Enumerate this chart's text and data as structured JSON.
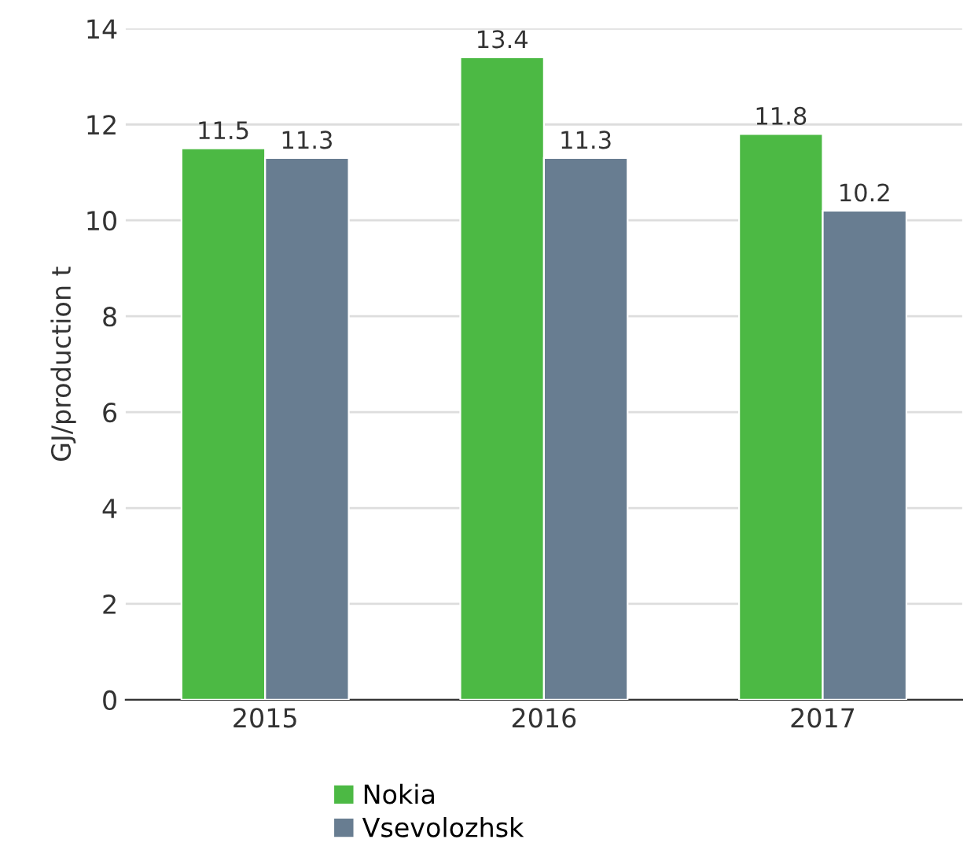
{
  "chart_data": {
    "type": "bar",
    "ylabel": "GJ/production t",
    "categories": [
      "2015",
      "2016",
      "2017"
    ],
    "series": [
      {
        "name": "Nokia",
        "color": "#4cb944",
        "values": [
          11.5,
          13.4,
          11.8
        ]
      },
      {
        "name": "Vsevolozhsk",
        "color": "#687d91",
        "values": [
          11.3,
          11.3,
          10.2
        ]
      }
    ],
    "ylim": [
      0,
      14
    ],
    "yticks": [
      0,
      2,
      4,
      6,
      8,
      10,
      12,
      14
    ],
    "grid": "y",
    "legend": "bottom",
    "data_labels": true
  }
}
